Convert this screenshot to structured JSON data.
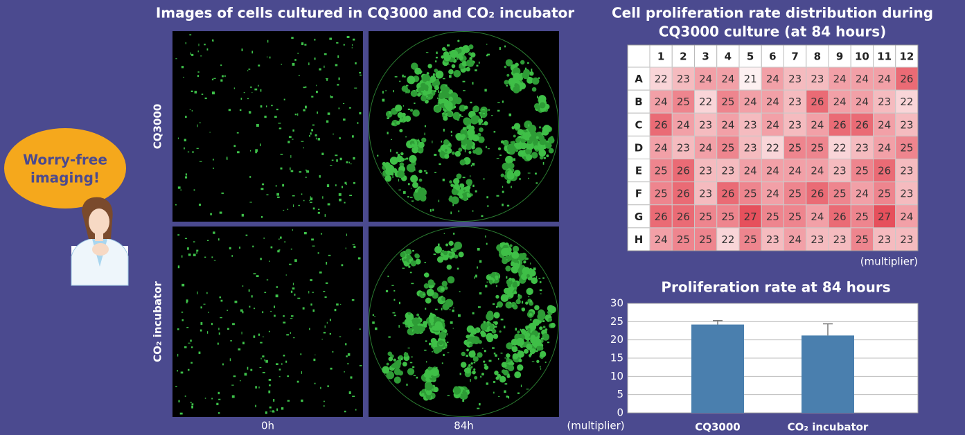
{
  "bubble": {
    "lines": [
      "Worry-free",
      "imaging!"
    ]
  },
  "images": {
    "title": "Images of cells cultured in CQ3000 and CO₂ incubator",
    "rows": [
      "CQ3000",
      "CO₂ incubator"
    ],
    "columns": [
      "0h",
      "84h"
    ]
  },
  "chart_data": [
    {
      "type": "heatmap",
      "title": [
        "Cell proliferation rate distribution during",
        "CQ3000 culture (at 84 hours)"
      ],
      "columns": [
        "1",
        "2",
        "3",
        "4",
        "5",
        "6",
        "7",
        "8",
        "9",
        "10",
        "11",
        "12"
      ],
      "rows": [
        "A",
        "B",
        "C",
        "D",
        "E",
        "F",
        "G",
        "H"
      ],
      "values": [
        [
          22,
          23,
          24,
          24,
          21,
          24,
          23,
          23,
          24,
          24,
          24,
          26
        ],
        [
          24,
          25,
          22,
          25,
          24,
          24,
          23,
          26,
          24,
          24,
          23,
          22
        ],
        [
          26,
          24,
          23,
          24,
          23,
          24,
          23,
          24,
          26,
          26,
          24,
          23
        ],
        [
          24,
          23,
          24,
          25,
          23,
          22,
          25,
          25,
          22,
          23,
          24,
          25
        ],
        [
          25,
          26,
          23,
          23,
          24,
          24,
          24,
          24,
          23,
          25,
          26,
          23
        ],
        [
          25,
          26,
          23,
          26,
          25,
          24,
          25,
          26,
          25,
          24,
          25,
          23
        ],
        [
          26,
          26,
          25,
          25,
          27,
          25,
          25,
          24,
          26,
          25,
          27,
          24
        ],
        [
          24,
          25,
          25,
          22,
          25,
          23,
          24,
          23,
          23,
          25,
          23,
          23
        ]
      ],
      "unit": "(multiplier)",
      "color_low": "#fdf0f1",
      "color_high": "#e6505c"
    },
    {
      "type": "bar",
      "title": "Proliferation rate at 84 hours",
      "categories": [
        "CQ3000",
        "CO₂ incubator"
      ],
      "values": [
        24.2,
        21.2
      ],
      "errors": [
        1.1,
        3.2
      ],
      "color": "#4a7fae",
      "ylabel": "(multiplier)",
      "ylim": [
        0,
        30
      ],
      "yticks": [
        0,
        5,
        10,
        15,
        20,
        25,
        30
      ],
      "grid": true
    }
  ]
}
